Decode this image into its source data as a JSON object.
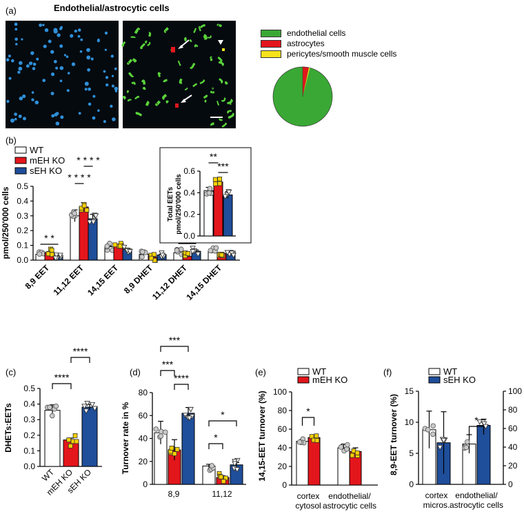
{
  "title": "Endothelial/astrocytic cells",
  "panel_labels": {
    "a": "(a)",
    "b": "(b)",
    "c": "(c)",
    "d": "(d)",
    "e": "(e)",
    "f": "(f)"
  },
  "colors": {
    "wt": "#ffffff",
    "mehko": "#e3161c",
    "sehko": "#1f4e9a",
    "yellow": "#f7d000",
    "endo": "#3aa835",
    "astro": "#e3161c",
    "peri": "#f7e21c"
  },
  "panel_a": {
    "legend": [
      {
        "label": "endothelial cells",
        "color": "#3aa835"
      },
      {
        "label": "astrocytes",
        "color": "#e3161c"
      },
      {
        "label": "pericytes/smooth muscle cells",
        "color": "#f7e21c"
      }
    ]
  },
  "chart_data": [
    {
      "id": "b",
      "type": "bar",
      "legend": [
        "WT",
        "mEH KO",
        "sEH KO"
      ],
      "categories": [
        "8,9 EET",
        "11,12 EET",
        "14,15 EET",
        "8,9 DHET",
        "11,12 DHET",
        "14,15 DHET"
      ],
      "series": [
        {
          "name": "WT",
          "values": [
            0.04,
            0.3,
            0.09,
            0.04,
            0.05,
            0.06
          ]
        },
        {
          "name": "mEH KO",
          "values": [
            0.05,
            0.36,
            0.1,
            0.02,
            0.025,
            0.045
          ]
        },
        {
          "name": "sEH KO",
          "values": [
            0.025,
            0.28,
            0.075,
            0.035,
            0.06,
            0.055
          ]
        }
      ],
      "ylabel": "pmol/250'000 cells",
      "ylim": [
        0,
        0.5
      ],
      "yticks": [
        "0.0",
        "0.1",
        "0.2",
        "0.3",
        "0.4",
        "0.5"
      ],
      "significance": [
        "* *",
        "* * * *",
        "* * * *",
        "*"
      ],
      "inset": {
        "ylabel_line1": "Total EETs",
        "ylabel_line2": "pmol/250'000 cells",
        "values": [
          0.42,
          0.5,
          0.38
        ],
        "ylim": [
          0,
          0.6
        ],
        "yticks": [
          "0.0",
          "0.2",
          "0.4",
          "0.6"
        ],
        "significance": [
          "**",
          "***"
        ]
      }
    },
    {
      "id": "c",
      "type": "bar",
      "ylabel": "DHETs:EETs",
      "categories": [
        "WT",
        "mEH KO",
        "sEH KO"
      ],
      "values": [
        0.36,
        0.17,
        0.38
      ],
      "ylim": [
        0,
        0.5
      ],
      "yticks": [
        "0.0",
        "0.1",
        "0.2",
        "0.3",
        "0.4",
        "0.5"
      ],
      "significance": [
        "****",
        "****"
      ]
    },
    {
      "id": "d",
      "type": "bar",
      "ylabel": "Turnover rate in %",
      "categories": [
        "8,9",
        "11,12"
      ],
      "series": [
        {
          "name": "WT",
          "values": [
            45,
            16
          ]
        },
        {
          "name": "mEH KO",
          "values": [
            30,
            6
          ]
        },
        {
          "name": "sEH KO",
          "values": [
            62,
            17
          ]
        }
      ],
      "ylim": [
        0,
        80
      ],
      "yticks": [
        "0",
        "20",
        "40",
        "60",
        "80"
      ],
      "significance": [
        "***",
        "***",
        "****",
        "*",
        "*"
      ]
    },
    {
      "id": "e",
      "type": "bar",
      "ylabel": "14,15-EET turnover (%)",
      "legend": [
        "WT",
        "mEH KO"
      ],
      "categories": [
        "cortex cytosol",
        "endothelial/ astrocytic cells"
      ],
      "category_lines": [
        [
          "cortex",
          "cytosol"
        ],
        [
          "endothelial/",
          "astrocytic cells"
        ]
      ],
      "series": [
        {
          "name": "WT",
          "values": [
            47,
            40
          ]
        },
        {
          "name": "mEH KO",
          "values": [
            51,
            36
          ]
        }
      ],
      "ylim": [
        0,
        100
      ],
      "yticks": [
        "0",
        "20",
        "40",
        "60",
        "80",
        "100"
      ],
      "significance": [
        "*"
      ]
    },
    {
      "id": "f",
      "type": "bar",
      "ylabel": "8,9-EET turnover (%)",
      "legend": [
        "WT",
        "sEH KO"
      ],
      "categories": [
        "cortex micros.",
        "endothelial/ astrocytic cells"
      ],
      "category_lines": [
        [
          "cortex",
          "micros."
        ],
        [
          "endothelial/",
          "astrocytic cells"
        ]
      ],
      "series": [
        {
          "name": "WT",
          "values": [
            8.8,
            6.5
          ]
        },
        {
          "name": "sEH KO",
          "values": [
            6.7,
            9.5
          ]
        }
      ],
      "ylim": [
        0,
        15
      ],
      "yticks": [
        "0",
        "5",
        "10",
        "15"
      ],
      "y2lim": [
        0,
        100
      ],
      "y2ticks": [
        "0",
        "20",
        "40",
        "60",
        "80",
        "100"
      ],
      "significance": [
        "*"
      ]
    }
  ]
}
